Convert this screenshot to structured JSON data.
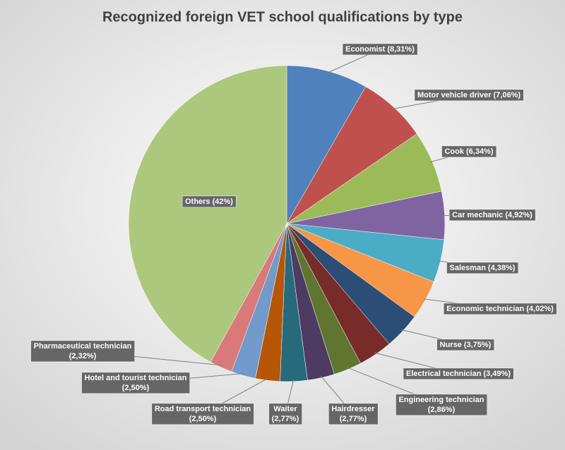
{
  "chart_data": {
    "type": "pie",
    "title": "Recognized foreign VET school qualifications by type",
    "categories": [
      "Economist",
      "Motor vehicle driver",
      "Cook",
      "Car mechanic",
      "Salesman",
      "Economic technician",
      "Nurse",
      "Electrical technician",
      "Engineering technician",
      "Hairdresser",
      "Waiter",
      "Road transport technician",
      "Hotel and tourist technician",
      "Pharmaceutical technician",
      "Others"
    ],
    "values": [
      8.31,
      7.06,
      6.34,
      4.92,
      4.38,
      4.02,
      3.75,
      3.49,
      2.86,
      2.77,
      2.77,
      2.5,
      2.5,
      2.32,
      42
    ],
    "value_labels": [
      "(8,31%)",
      "(7,06%)",
      "(6,34%)",
      "(4,92%)",
      "(4,38%)",
      "(4,02%)",
      "(3,75%)",
      "(3,49%)",
      "(2,86%)",
      "(2,77%)",
      "(2,77%)",
      "(2,50%)",
      "(2,50%)",
      "(2,32%)",
      "(42%)"
    ],
    "colors": [
      "#4f81bd",
      "#c0504d",
      "#9bbb59",
      "#8064a2",
      "#4bacc6",
      "#f79646",
      "#2c4d75",
      "#772c2a",
      "#5f7530",
      "#4d3b62",
      "#276a7c",
      "#b65708",
      "#729aca",
      "#d9797a",
      "#acc87c"
    ]
  }
}
